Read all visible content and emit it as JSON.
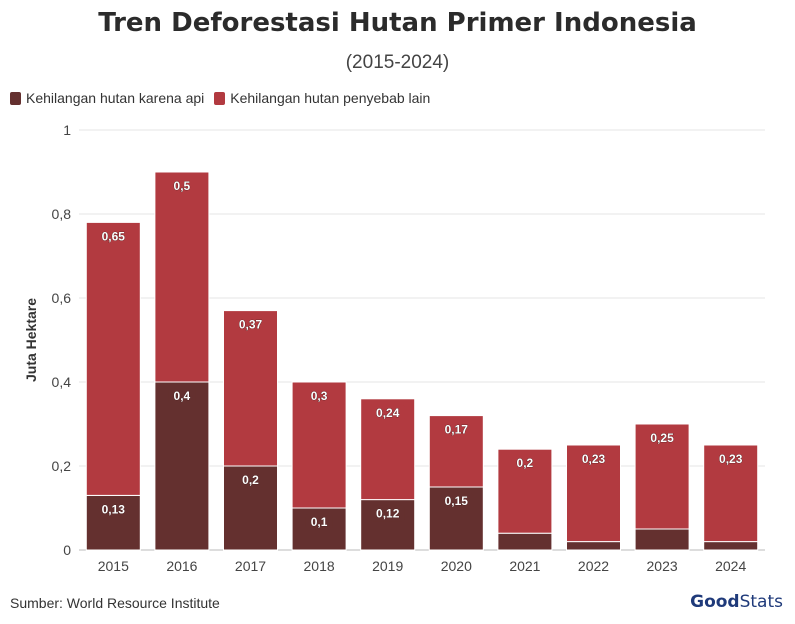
{
  "title": "Tren Deforestasi Hutan Primer Indonesia",
  "subtitle": "(2015-2024)",
  "source": "Sumber: World Resource Institute",
  "brand": {
    "bold": "Good",
    "light": "Stats"
  },
  "colors": {
    "fire": "#64302f",
    "other": "#b23a40",
    "label_bg": "#ffffff"
  },
  "chart_data": {
    "type": "bar",
    "stacked": true,
    "ylabel": "Juta Hektare",
    "ylim": [
      0,
      1
    ],
    "yticks": [
      0,
      0.2,
      0.4,
      0.6,
      0.8,
      1
    ],
    "ytick_labels": [
      "0",
      "0,2",
      "0,4",
      "0,6",
      "0,8",
      "1"
    ],
    "grid": true,
    "legend_position": "top-left",
    "categories": [
      "2015",
      "2016",
      "2017",
      "2018",
      "2019",
      "2020",
      "2021",
      "2022",
      "2023",
      "2024"
    ],
    "series": [
      {
        "name": "Kehilangan hutan karena api",
        "values": [
          0.13,
          0.4,
          0.2,
          0.1,
          0.12,
          0.15,
          0.04,
          0.02,
          0.05,
          0.02
        ],
        "labels": [
          "0,13",
          "0,4",
          "0,2",
          "0,1",
          "0,12",
          "0,15",
          "",
          "",
          "",
          ""
        ]
      },
      {
        "name": "Kehilangan hutan penyebab lain",
        "values": [
          0.65,
          0.5,
          0.37,
          0.3,
          0.24,
          0.17,
          0.2,
          0.23,
          0.25,
          0.23
        ],
        "labels": [
          "0,65",
          "0,5",
          "0,37",
          "0,3",
          "0,24",
          "0,17",
          "0,2",
          "0,23",
          "0,25",
          "0,23"
        ]
      }
    ]
  }
}
